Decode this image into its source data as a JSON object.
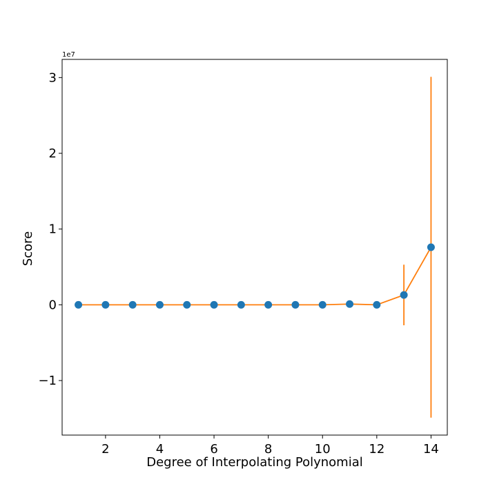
{
  "chart_data": {
    "type": "scatter",
    "title": "",
    "xlabel": "Degree of Interpolating Polynomial",
    "ylabel": "Score",
    "y_offset_label": "1e7",
    "xlim": [
      0.4,
      14.6
    ],
    "ylim": [
      -1.72,
      3.24
    ],
    "y_scale_factor": 10000000,
    "x_ticks": [
      2,
      4,
      6,
      8,
      10,
      12,
      14
    ],
    "x_tick_labels": [
      "2",
      "4",
      "6",
      "8",
      "10",
      "12",
      "14"
    ],
    "y_ticks": [
      -1,
      0,
      1,
      2,
      3
    ],
    "y_tick_labels": [
      "−1",
      "0",
      "1",
      "2",
      "3"
    ],
    "grid": false,
    "legend": "none",
    "colors": {
      "points": "#1f77b4",
      "line": "#ff7f0e"
    },
    "series": [
      {
        "x": [
          1,
          2,
          3,
          4,
          5,
          6,
          7,
          8,
          9,
          10,
          11,
          12,
          13,
          14
        ],
        "y": [
          0,
          0,
          0,
          0,
          0,
          0,
          0,
          0,
          0,
          0,
          0.01,
          0,
          0.13,
          0.76
        ],
        "yerr": [
          0,
          0,
          0,
          0,
          0,
          0,
          0,
          0,
          0,
          0,
          0,
          0,
          0.4,
          2.25
        ]
      }
    ]
  }
}
